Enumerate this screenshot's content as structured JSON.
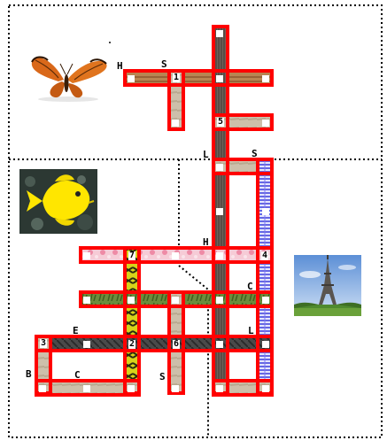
{
  "puzzle": {
    "numbers": [
      "1",
      "2",
      "3",
      "4",
      "5",
      "6",
      "7"
    ],
    "letters": [
      "H",
      "S",
      "L",
      "S",
      "H",
      "C",
      "E",
      "L",
      "B",
      "C",
      "S"
    ]
  },
  "images": {
    "butterfly": "butterfly-picture",
    "fish": "yellow-fish-picture",
    "tower": "eiffel-tower-picture"
  },
  "colors": {
    "border": "#ff0000",
    "dotted": "#000000"
  }
}
